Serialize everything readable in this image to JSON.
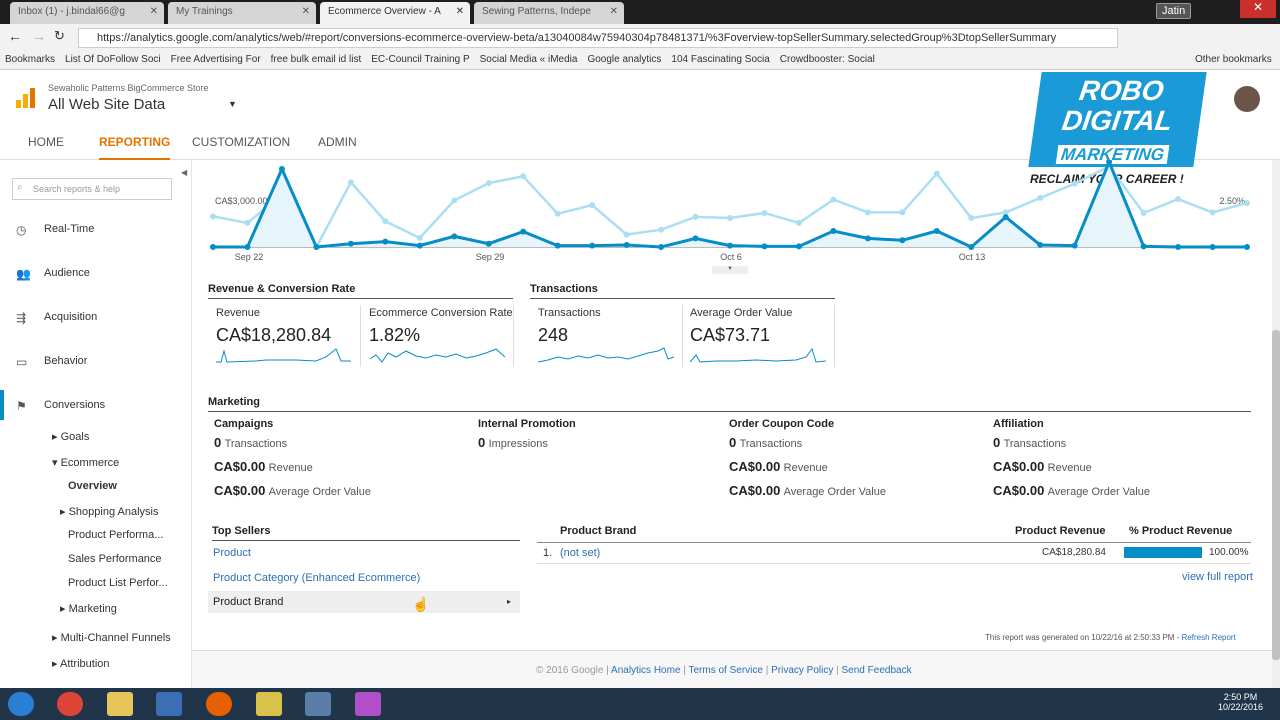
{
  "browser": {
    "tabs": [
      {
        "label": "Inbox (1) - j.bindal66@g",
        "active": false
      },
      {
        "label": "My Trainings",
        "active": false
      },
      {
        "label": "Ecommerce Overview - A",
        "active": true
      },
      {
        "label": "Sewing Patterns, Indepe",
        "active": false
      }
    ],
    "user": "Jatin",
    "url": "https://analytics.google.com/analytics/web/#report/conversions-ecommerce-overview-beta/a13040084w75940304p78481371/%3Foverview-topSellerSummary.selectedGroup%3DtopSellerSummary",
    "bookmarks": [
      "Bookmarks",
      "List Of DoFollow Soci",
      "Free Advertising For",
      "free bulk email id list",
      "EC-Council Training P",
      "Social Media « iMedia",
      "Google analytics",
      "104 Fascinating Socia",
      "Crowdbooster: Social",
      "Other bookmarks"
    ]
  },
  "ga": {
    "account": "Sewaholic Patterns BigCommerce Store",
    "view": "All Web Site Data",
    "nav": [
      "HOME",
      "REPORTING",
      "CUSTOMIZATION",
      "ADMIN"
    ],
    "active_nav": "REPORTING"
  },
  "watermark": {
    "line1": "ROBO",
    "line2": "DIGITAL",
    "line3": "MARKETING",
    "tagline": "RECLAIM YOUR CAREER !"
  },
  "sidebar": {
    "search_placeholder": "Search reports & help",
    "items": [
      {
        "label": "Real-Time",
        "icon": "clock-icon"
      },
      {
        "label": "Audience",
        "icon": "people-icon"
      },
      {
        "label": "Acquisition",
        "icon": "acquisition-icon"
      },
      {
        "label": "Behavior",
        "icon": "behavior-icon"
      },
      {
        "label": "Conversions",
        "icon": "flag-icon"
      }
    ],
    "sub": [
      "Goals",
      "Ecommerce",
      "Overview",
      "Shopping Analysis",
      "Product Performa...",
      "Sales Performance",
      "Product List Perfor...",
      "Marketing",
      "Multi-Channel Funnels",
      "Attribution"
    ]
  },
  "chart_data": {
    "type": "line",
    "x": [
      "Sep 21",
      "Sep 22",
      "Sep 23",
      "Sep 24",
      "Sep 25",
      "Sep 26",
      "Sep 27",
      "Sep 28",
      "Sep 29",
      "Sep 30",
      "Oct 1",
      "Oct 2",
      "Oct 3",
      "Oct 4",
      "Oct 5",
      "Oct 6",
      "Oct 7",
      "Oct 8",
      "Oct 9",
      "Oct 10",
      "Oct 11",
      "Oct 12",
      "Oct 13",
      "Oct 14",
      "Oct 15",
      "Oct 16",
      "Oct 17",
      "Oct 18",
      "Oct 19",
      "Oct 20",
      "Oct 21"
    ],
    "xticks": [
      "Sep 22",
      "Sep 29",
      "Oct 6",
      "Oct 13"
    ],
    "left_axis_label": "CA$3,000.00",
    "right_axis_label": "2.50%",
    "series": [
      {
        "axis": "left",
        "color": "#058dc7",
        "values": [
          0,
          0,
          4980,
          0,
          210,
          340,
          90,
          680,
          210,
          980,
          90,
          90,
          130,
          0,
          550,
          90,
          40,
          40,
          1020,
          550,
          430,
          1020,
          0,
          1910,
          130,
          90,
          5500,
          40,
          0,
          0,
          0
        ]
      },
      {
        "axis": "right",
        "color": "#aadff3",
        "values": [
          1.63,
          1.28,
          2.78,
          0,
          3.44,
          1.37,
          0.48,
          2.48,
          3.4,
          3.76,
          1.77,
          2.23,
          0.66,
          0.92,
          1.6,
          1.54,
          1.81,
          1.28,
          2.52,
          1.84,
          1.84,
          3.9,
          1.54,
          1.84,
          2.61,
          3.37,
          4.29,
          1.81,
          2.55,
          1.84,
          2.34
        ]
      }
    ],
    "left_ref": 3000,
    "right_ref": 2.5
  },
  "rev": {
    "title": "Revenue & Conversion Rate",
    "m": [
      {
        "label": "Revenue",
        "value": "CA$18,280.84"
      },
      {
        "label": "Ecommerce Conversion Rate",
        "value": "1.82%"
      }
    ]
  },
  "trans": {
    "title": "Transactions",
    "m": [
      {
        "label": "Transactions",
        "value": "248"
      },
      {
        "label": "Average Order Value",
        "value": "CA$73.71"
      }
    ]
  },
  "marketing": {
    "title": "Marketing",
    "cols": [
      {
        "title": "Campaigns",
        "count": "0",
        "count_label": "Transactions",
        "rev": "CA$0.00",
        "rev_label": "Revenue",
        "aov": "CA$0.00",
        "aov_label": "Average Order Value"
      },
      {
        "title": "Internal Promotion",
        "count": "0",
        "count_label": "Impressions"
      },
      {
        "title": "Order Coupon Code",
        "count": "0",
        "count_label": "Transactions",
        "rev": "CA$0.00",
        "rev_label": "Revenue",
        "aov": "CA$0.00",
        "aov_label": "Average Order Value"
      },
      {
        "title": "Affiliation",
        "count": "0",
        "count_label": "Transactions",
        "rev": "CA$0.00",
        "rev_label": "Revenue",
        "aov": "CA$0.00",
        "aov_label": "Average Order Value"
      }
    ]
  },
  "top": {
    "title": "Top Sellers",
    "items": [
      "Product",
      "Product Category (Enhanced Ecommerce)",
      "Product Brand"
    ],
    "selected": "Product Brand",
    "table": {
      "headers": [
        "Product Brand",
        "Product Revenue",
        "% Product Revenue"
      ],
      "rows": [
        {
          "n": "1.",
          "brand": "(not set)",
          "rev": "CA$18,280.84",
          "pct": "100.00%",
          "pct_value": 100
        }
      ],
      "view_full": "view full report"
    }
  },
  "generated": "This report was generated on 10/22/16 at 2:50:33 PM - ",
  "refresh": "Refresh Report",
  "footer": {
    "copy": "© 2016 Google |",
    "links": [
      "Analytics Home",
      "Terms of Service",
      "Privacy Policy",
      "Send Feedback"
    ]
  },
  "clock": {
    "time": "2:50 PM",
    "date": "10/22/2016"
  }
}
